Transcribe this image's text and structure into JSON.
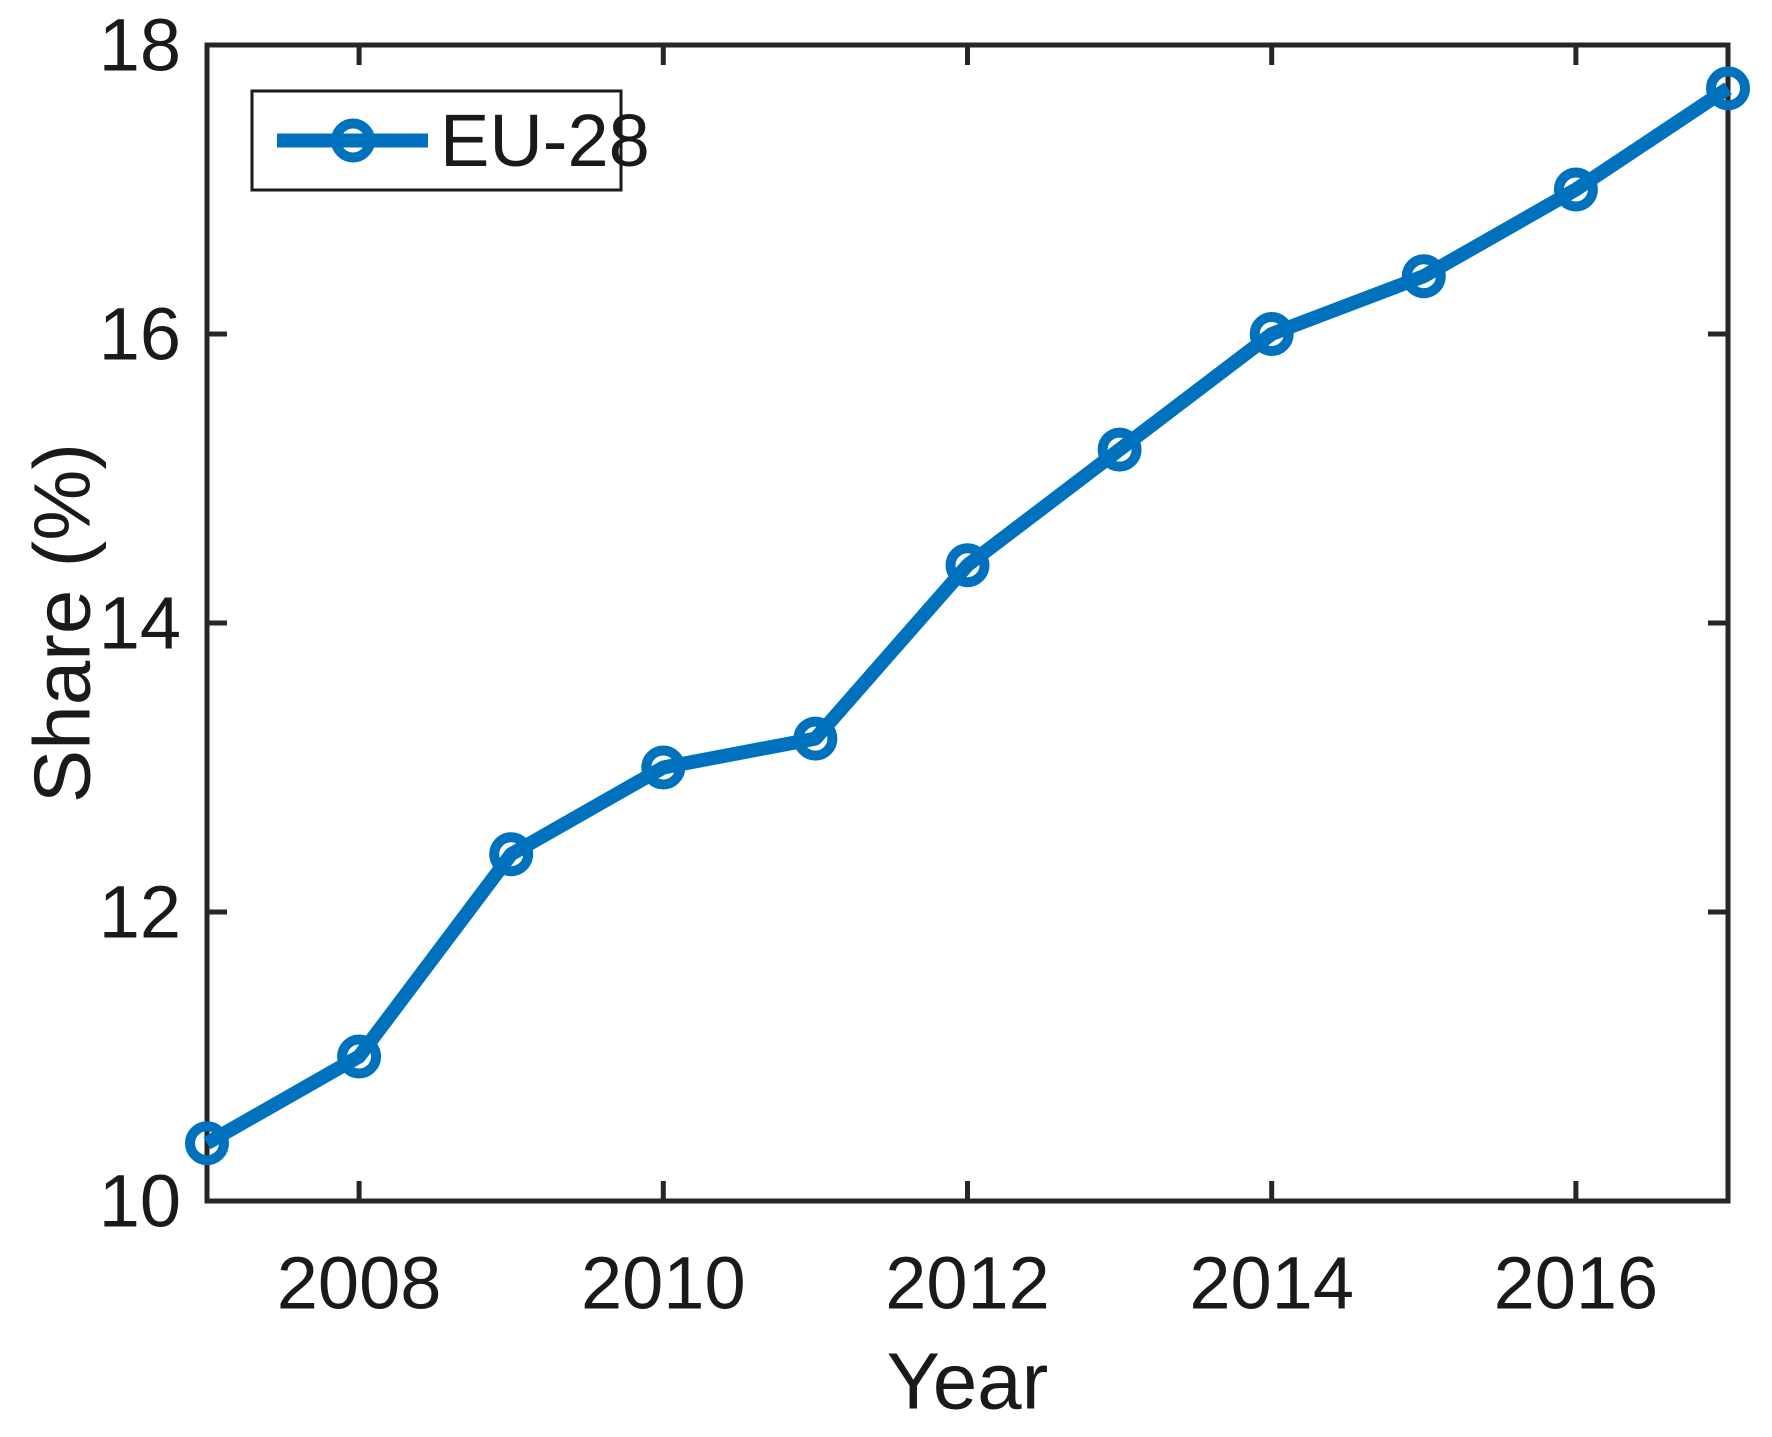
{
  "figure": {
    "background": "#ffffff"
  },
  "chart_data": {
    "type": "line",
    "title": "",
    "xlabel": "Year",
    "ylabel": "Share (%)",
    "x": [
      2007,
      2008,
      2009,
      2010,
      2011,
      2012,
      2013,
      2014,
      2015,
      2016,
      2017
    ],
    "series": [
      {
        "name": "EU-28",
        "values": [
          10.4,
          11.0,
          12.4,
          13.0,
          13.2,
          14.4,
          15.2,
          16.0,
          16.4,
          17.0,
          17.7
        ],
        "color": "#0072BD",
        "marker": "circle-hollow"
      }
    ],
    "xlim": [
      2007,
      2017
    ],
    "ylim": [
      10,
      18
    ],
    "x_ticks": [
      2008,
      2010,
      2012,
      2014,
      2016
    ],
    "y_ticks": [
      10,
      12,
      14,
      16,
      18
    ],
    "grid": false,
    "legend": {
      "position": "top-left",
      "entries": [
        "EU-28"
      ]
    }
  },
  "style": {
    "axis_color": "#262626",
    "text_color": "#1a1a1a",
    "series_color": "#0072BD"
  }
}
